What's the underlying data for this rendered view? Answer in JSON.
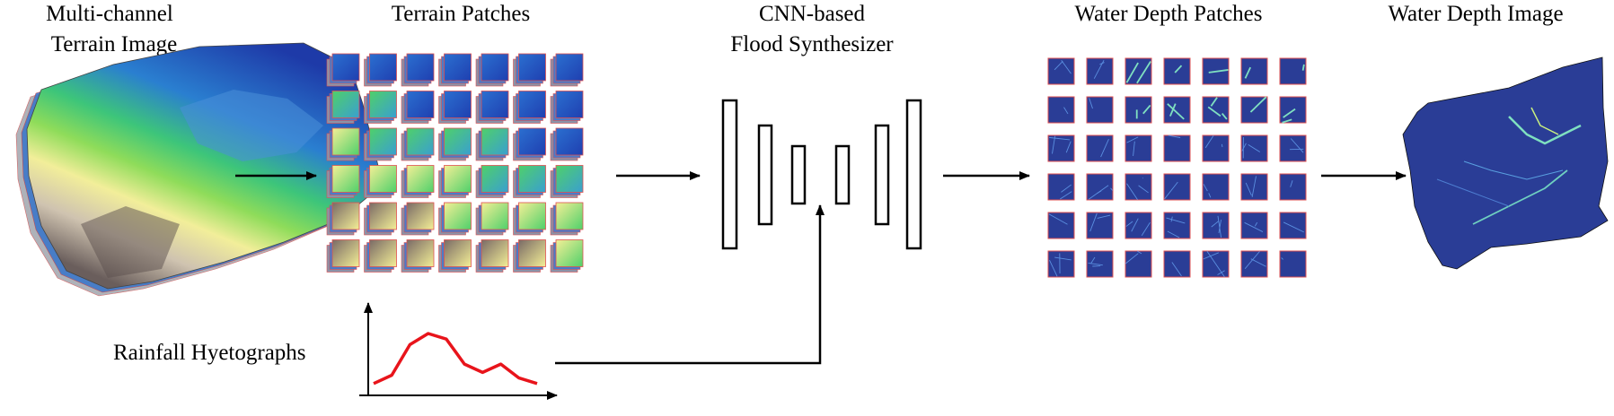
{
  "labels": {
    "terrain_image_line1": "Multi-channel",
    "terrain_image_line2": "Terrain Image",
    "terrain_patches": "Terrain Patches",
    "cnn_line1": "CNN-based",
    "cnn_line2": "Flood Synthesizer",
    "water_patches": "Water Depth Patches",
    "water_image": "Water Depth Image",
    "rainfall": "Rainfall Hyetographs"
  },
  "grids": {
    "terrain_patches": {
      "rows": 6,
      "cols": 7
    },
    "water_depth_patches": {
      "rows": 6,
      "cols": 7
    }
  },
  "colors": {
    "rainfall_curve": "#e8141b",
    "patch_border": "#e05050",
    "water_deep": "#2a3d96",
    "water_flow": "#7fe0c0",
    "terrain_low": "#1f3fb0",
    "terrain_mid": "#4fd06a",
    "terrain_high": "#f4ef96",
    "terrain_peak": "#7a6a66"
  },
  "rainfall_series": [
    0.2,
    0.5,
    1.6,
    2.0,
    1.8,
    0.9,
    0.6,
    0.9,
    0.4,
    0.2
  ]
}
